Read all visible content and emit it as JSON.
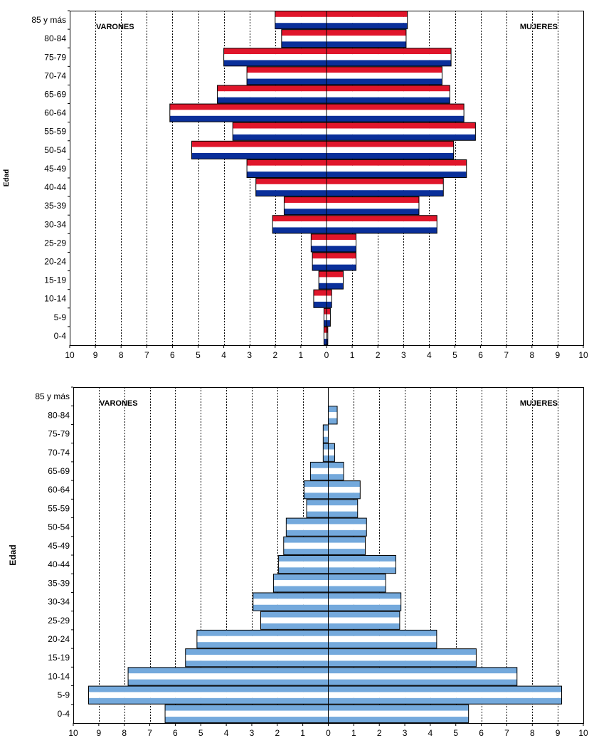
{
  "chart_data": [
    {
      "type": "bar",
      "subtype": "population-pyramid",
      "ylabel": "Edad",
      "left_label": "VARONES",
      "right_label": "MUJERES",
      "xlim": [
        -10,
        10
      ],
      "x_tick_labels": [
        "10",
        "9",
        "8",
        "7",
        "6",
        "5",
        "4",
        "3",
        "2",
        "1",
        "0",
        "1",
        "2",
        "3",
        "4",
        "5",
        "6",
        "7",
        "8",
        "9",
        "10"
      ],
      "grid": "vertical dashed",
      "colors": {
        "stripe_a": "#e0162b",
        "stripe_mid": "#ffffff",
        "stripe_b": "#0a2f9a"
      },
      "categories": [
        "85 y más",
        "80-84",
        "75-79",
        "70-74",
        "65-69",
        "60-64",
        "55-59",
        "50-54",
        "45-49",
        "40-44",
        "35-39",
        "30-34",
        "25-29",
        "20-24",
        "15-19",
        "10-14",
        "5-9",
        "0-4"
      ],
      "series": [
        {
          "name": "VARONES",
          "values": [
            2.0,
            1.75,
            4.0,
            3.1,
            4.25,
            6.1,
            3.65,
            5.25,
            3.1,
            2.75,
            1.65,
            2.1,
            0.6,
            0.55,
            0.3,
            0.5,
            0.1,
            0.1
          ]
        },
        {
          "name": "MUJERES",
          "values": [
            3.15,
            3.1,
            4.85,
            4.5,
            4.8,
            5.35,
            5.8,
            4.95,
            5.45,
            4.55,
            3.6,
            4.3,
            1.15,
            1.15,
            0.65,
            0.2,
            0.15,
            0.05
          ]
        }
      ]
    },
    {
      "type": "bar",
      "subtype": "population-pyramid",
      "ylabel": "Edad",
      "left_label": "VARONES",
      "right_label": "MUJERES",
      "xlim": [
        -10,
        10
      ],
      "x_tick_labels": [
        "10",
        "9",
        "8",
        "7",
        "6",
        "5",
        "4",
        "3",
        "2",
        "1",
        "0",
        "1",
        "2",
        "3",
        "4",
        "5",
        "6",
        "7",
        "8",
        "9",
        "10"
      ],
      "grid": "vertical dashed",
      "colors": {
        "stripe_a": "#74a9dc",
        "stripe_mid": "#ffffff",
        "stripe_b": "#74a9dc"
      },
      "categories": [
        "85 y más",
        "80-84",
        "75-79",
        "70-74",
        "65-69",
        "60-64",
        "55-59",
        "50-54",
        "45-49",
        "40-44",
        "35-39",
        "30-34",
        "25-29",
        "20-24",
        "15-19",
        "10-14",
        "5-9",
        "0-4"
      ],
      "series": [
        {
          "name": "VARONES",
          "values": [
            0,
            0,
            0.2,
            0.2,
            0.7,
            0.95,
            0.85,
            1.65,
            1.75,
            1.95,
            2.15,
            2.95,
            2.65,
            5.15,
            5.6,
            7.85,
            9.4,
            6.4
          ]
        },
        {
          "name": "MUJERES",
          "values": [
            0,
            0.35,
            0,
            0.25,
            0.6,
            1.25,
            1.15,
            1.5,
            1.45,
            2.65,
            2.25,
            2.85,
            2.8,
            4.25,
            5.8,
            7.4,
            9.15,
            5.5
          ]
        }
      ]
    }
  ]
}
